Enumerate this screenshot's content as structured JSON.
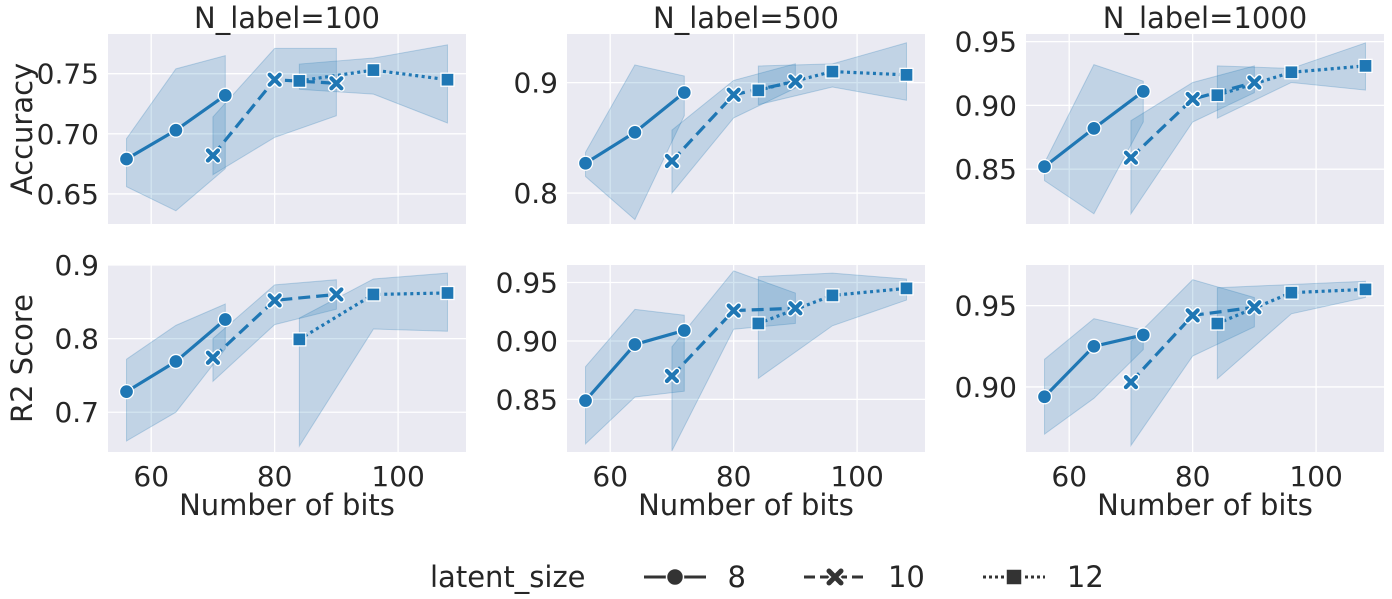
{
  "colors": {
    "line": "#1f77b4",
    "band": "#1f77b4",
    "panel_bg": "#eaeaf2",
    "grid": "#ffffff",
    "text": "#262626"
  },
  "legend": {
    "title": "latent_size",
    "entries": [
      {
        "label": "8",
        "marker": "circle",
        "dash": "solid"
      },
      {
        "label": "10",
        "marker": "x",
        "dash": "dashed"
      },
      {
        "label": "12",
        "marker": "square",
        "dash": "dotted"
      }
    ]
  },
  "chart_data": [
    {
      "type": "line",
      "title": "N_label=100",
      "xlabel": "",
      "ylabel": "Accuracy",
      "xlim": [
        53,
        111
      ],
      "ylim": [
        0.625,
        0.783
      ],
      "xticks": [
        60,
        80,
        100
      ],
      "yticks": [
        0.65,
        0.7,
        0.75
      ],
      "ytick_labels": [
        "0.65",
        "0.70",
        "0.75"
      ],
      "show_xtick_labels": false,
      "series": [
        {
          "name": "8",
          "x": [
            56,
            64,
            72
          ],
          "y": [
            0.679,
            0.703,
            0.732
          ],
          "lower": [
            0.656,
            0.636,
            0.671
          ],
          "upper": [
            0.696,
            0.754,
            0.765
          ]
        },
        {
          "name": "10",
          "x": [
            70,
            80,
            90
          ],
          "y": [
            0.682,
            0.745,
            0.742
          ],
          "lower": [
            0.666,
            0.697,
            0.715
          ],
          "upper": [
            0.714,
            0.771,
            0.771
          ]
        },
        {
          "name": "12",
          "x": [
            84,
            96,
            108
          ],
          "y": [
            0.744,
            0.753,
            0.745
          ],
          "lower": [
            0.737,
            0.733,
            0.709
          ],
          "upper": [
            0.758,
            0.763,
            0.774
          ]
        }
      ]
    },
    {
      "type": "line",
      "title": "N_label=500",
      "xlabel": "",
      "ylabel": "",
      "xlim": [
        53,
        111
      ],
      "ylim": [
        0.772,
        0.944
      ],
      "xticks": [
        60,
        80,
        100
      ],
      "yticks": [
        0.8,
        0.9
      ],
      "ytick_labels": [
        "0.8",
        "0.9"
      ],
      "show_xtick_labels": false,
      "series": [
        {
          "name": "8",
          "x": [
            56,
            64,
            72
          ],
          "y": [
            0.827,
            0.855,
            0.891
          ],
          "lower": [
            0.815,
            0.776,
            0.87
          ],
          "upper": [
            0.837,
            0.916,
            0.906
          ]
        },
        {
          "name": "10",
          "x": [
            70,
            80,
            90
          ],
          "y": [
            0.829,
            0.889,
            0.901
          ],
          "lower": [
            0.8,
            0.868,
            0.895
          ],
          "upper": [
            0.857,
            0.902,
            0.917
          ]
        },
        {
          "name": "12",
          "x": [
            84,
            96,
            108
          ],
          "y": [
            0.893,
            0.91,
            0.907
          ],
          "lower": [
            0.88,
            0.896,
            0.884
          ],
          "upper": [
            0.915,
            0.917,
            0.936
          ]
        }
      ]
    },
    {
      "type": "line",
      "title": "N_label=1000",
      "xlabel": "",
      "ylabel": "",
      "xlim": [
        53,
        111
      ],
      "ylim": [
        0.807,
        0.956
      ],
      "xticks": [
        60,
        80,
        100
      ],
      "yticks": [
        0.85,
        0.9,
        0.95
      ],
      "ytick_labels": [
        "0.85",
        "0.90",
        "0.95"
      ],
      "show_xtick_labels": false,
      "series": [
        {
          "name": "8",
          "x": [
            56,
            64,
            72
          ],
          "y": [
            0.852,
            0.882,
            0.911
          ],
          "lower": [
            0.841,
            0.815,
            0.887
          ],
          "upper": [
            0.855,
            0.932,
            0.919
          ]
        },
        {
          "name": "10",
          "x": [
            70,
            80,
            90
          ],
          "y": [
            0.859,
            0.905,
            0.918
          ],
          "lower": [
            0.815,
            0.887,
            0.91
          ],
          "upper": [
            0.888,
            0.918,
            0.931
          ]
        },
        {
          "name": "12",
          "x": [
            84,
            96,
            108
          ],
          "y": [
            0.908,
            0.926,
            0.931
          ],
          "lower": [
            0.89,
            0.918,
            0.912
          ],
          "upper": [
            0.931,
            0.929,
            0.949
          ]
        }
      ]
    },
    {
      "type": "line",
      "title": "",
      "xlabel": "Number of bits",
      "ylabel": "R2 Score",
      "xlim": [
        53,
        111
      ],
      "ylim": [
        0.646,
        0.9
      ],
      "xticks": [
        60,
        80,
        100
      ],
      "yticks": [
        0.7,
        0.8,
        0.9
      ],
      "ytick_labels": [
        "0.7",
        "0.8",
        "0.9"
      ],
      "show_xtick_labels": true,
      "series": [
        {
          "name": "8",
          "x": [
            56,
            64,
            72
          ],
          "y": [
            0.728,
            0.769,
            0.826
          ],
          "lower": [
            0.661,
            0.7,
            0.786
          ],
          "upper": [
            0.772,
            0.818,
            0.847
          ]
        },
        {
          "name": "10",
          "x": [
            70,
            80,
            90
          ],
          "y": [
            0.774,
            0.852,
            0.86
          ],
          "lower": [
            0.742,
            0.819,
            0.84
          ],
          "upper": [
            0.8,
            0.873,
            0.88
          ]
        },
        {
          "name": "12",
          "x": [
            84,
            96,
            108
          ],
          "y": [
            0.799,
            0.86,
            0.862
          ],
          "lower": [
            0.654,
            0.813,
            0.81
          ],
          "upper": [
            0.828,
            0.881,
            0.889
          ]
        }
      ]
    },
    {
      "type": "line",
      "title": "",
      "xlabel": "Number of bits",
      "ylabel": "",
      "xlim": [
        53,
        111
      ],
      "ylim": [
        0.805,
        0.965
      ],
      "xticks": [
        60,
        80,
        100
      ],
      "yticks": [
        0.85,
        0.9,
        0.95
      ],
      "ytick_labels": [
        "0.85",
        "0.90",
        "0.95"
      ],
      "show_xtick_labels": true,
      "series": [
        {
          "name": "8",
          "x": [
            56,
            64,
            72
          ],
          "y": [
            0.849,
            0.897,
            0.909
          ],
          "lower": [
            0.812,
            0.852,
            0.857
          ],
          "upper": [
            0.878,
            0.927,
            0.922
          ]
        },
        {
          "name": "10",
          "x": [
            70,
            80,
            90
          ],
          "y": [
            0.87,
            0.926,
            0.928
          ],
          "lower": [
            0.806,
            0.91,
            0.915
          ],
          "upper": [
            0.895,
            0.96,
            0.941
          ]
        },
        {
          "name": "12",
          "x": [
            84,
            96,
            108
          ],
          "y": [
            0.915,
            0.939,
            0.945
          ],
          "lower": [
            0.868,
            0.913,
            0.935
          ],
          "upper": [
            0.955,
            0.958,
            0.953
          ]
        }
      ]
    },
    {
      "type": "line",
      "title": "",
      "xlabel": "Number of bits",
      "ylabel": "",
      "xlim": [
        53,
        111
      ],
      "ylim": [
        0.86,
        0.975
      ],
      "xticks": [
        60,
        80,
        100
      ],
      "yticks": [
        0.9,
        0.95
      ],
      "ytick_labels": [
        "0.90",
        "0.95"
      ],
      "show_xtick_labels": true,
      "series": [
        {
          "name": "8",
          "x": [
            56,
            64,
            72
          ],
          "y": [
            0.894,
            0.925,
            0.932
          ],
          "lower": [
            0.871,
            0.893,
            0.923
          ],
          "upper": [
            0.917,
            0.942,
            0.935
          ]
        },
        {
          "name": "10",
          "x": [
            70,
            80,
            90
          ],
          "y": [
            0.903,
            0.944,
            0.949
          ],
          "lower": [
            0.864,
            0.919,
            0.937
          ],
          "upper": [
            0.928,
            0.966,
            0.955
          ]
        },
        {
          "name": "12",
          "x": [
            84,
            96,
            108
          ],
          "y": [
            0.939,
            0.958,
            0.96
          ],
          "lower": [
            0.905,
            0.945,
            0.955
          ],
          "upper": [
            0.961,
            0.963,
            0.965
          ]
        }
      ]
    }
  ]
}
